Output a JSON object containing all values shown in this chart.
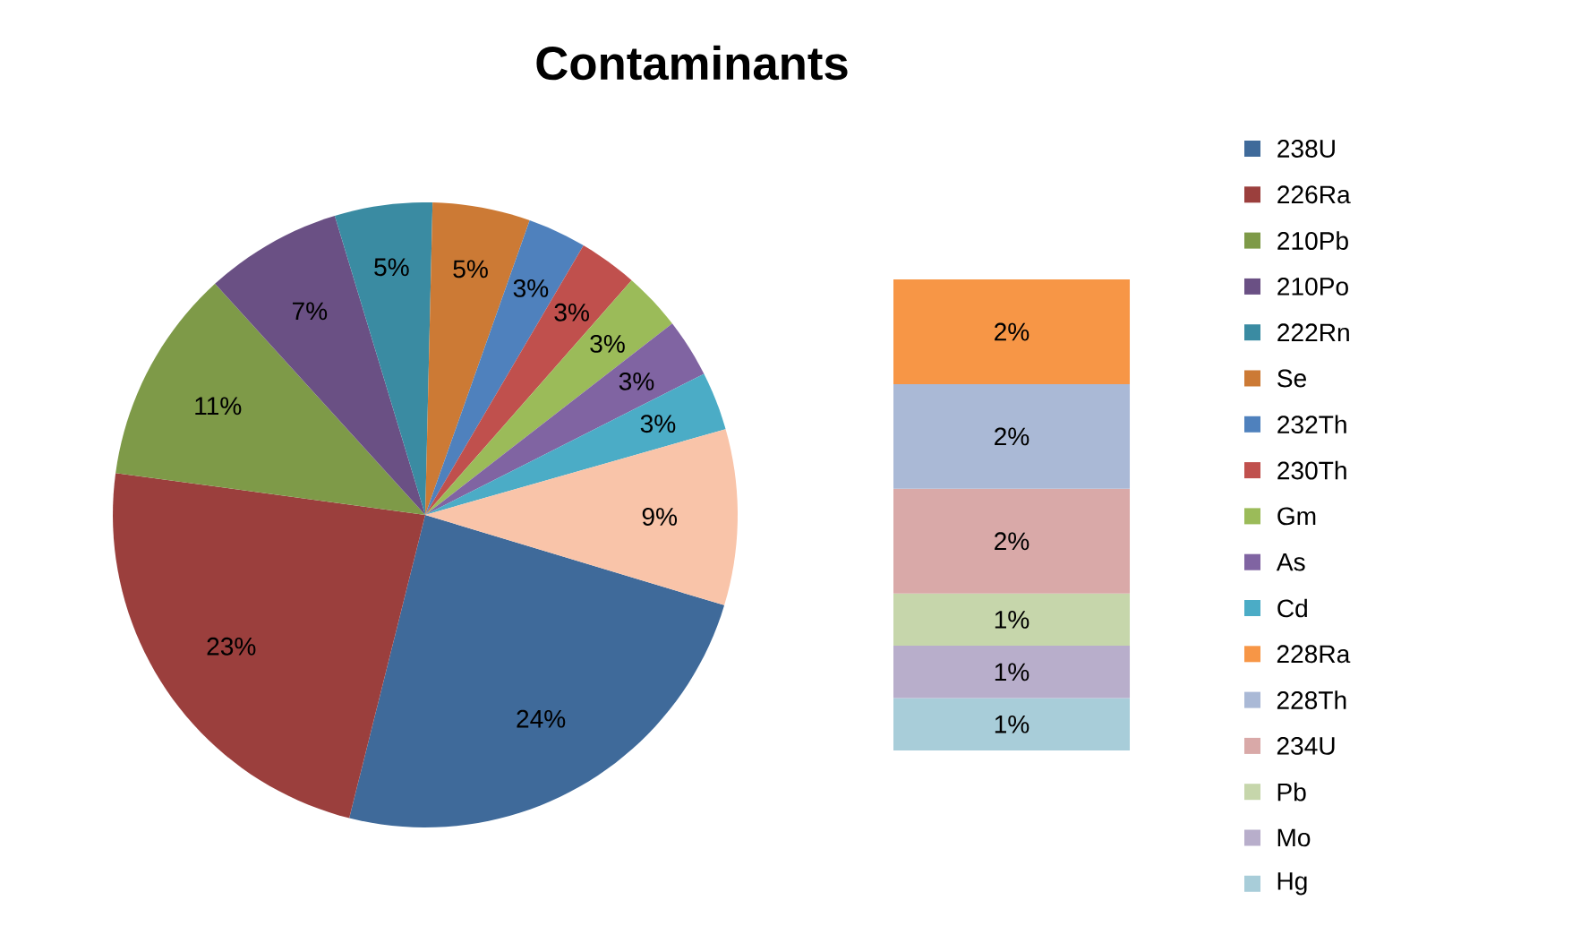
{
  "chart_data": [
    {
      "type": "pie",
      "title": "Contaminants",
      "categories": [
        "238U",
        "226Ra",
        "210Pb",
        "210Po",
        "222Rn",
        "Se",
        "232Th",
        "230Th",
        "Gm",
        "As",
        "Cd",
        null
      ],
      "values": [
        24,
        23,
        11,
        7,
        5,
        5,
        3,
        3,
        3,
        3,
        3,
        9
      ],
      "value_labels": [
        "24%",
        "23%",
        "11%",
        "7%",
        "5%",
        "5%",
        "3%",
        "3%",
        "3%",
        "3%",
        "3%",
        "9%"
      ],
      "colors": [
        "#3f6a9a",
        "#9b3f3d",
        "#7e9a48",
        "#6a5084",
        "#3a8ba2",
        "#cc7a35",
        "#4f81bd",
        "#c0504d",
        "#9bbb59",
        "#8064a2",
        "#4bacc6",
        "#f9c4a9"
      ],
      "legend": "right"
    },
    {
      "type": "bar",
      "stacked": true,
      "categories": [
        null
      ],
      "legend": "right",
      "series": [
        {
          "name": "Hg",
          "color": "#a8cdd9",
          "values": [
            1
          ],
          "value_labels": [
            "1%"
          ]
        },
        {
          "name": "Mo",
          "color": "#b8aecb",
          "values": [
            1
          ],
          "value_labels": [
            "1%"
          ]
        },
        {
          "name": "Pb",
          "color": "#c6d6ab",
          "values": [
            1
          ],
          "value_labels": [
            "1%"
          ]
        },
        {
          "name": "234U",
          "color": "#d9a9a8",
          "values": [
            2
          ],
          "value_labels": [
            "2%"
          ]
        },
        {
          "name": "228Th",
          "color": "#aab9d6",
          "values": [
            2
          ],
          "value_labels": [
            "2%"
          ]
        },
        {
          "name": "228Ra",
          "color": "#f79646",
          "values": [
            2
          ],
          "value_labels": [
            "2%"
          ]
        }
      ]
    }
  ]
}
